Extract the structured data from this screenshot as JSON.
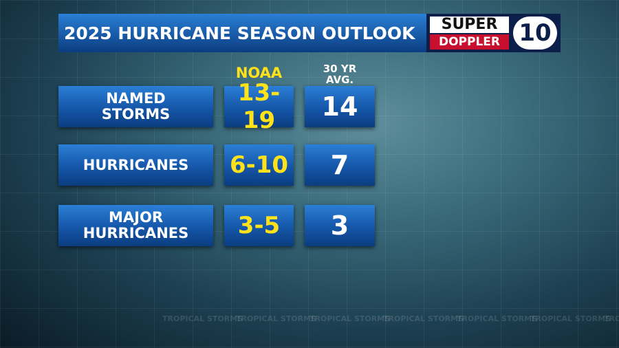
{
  "header": {
    "title": "2025 HURRICANE SEASON OUTLOOK",
    "logo": {
      "line1": "SUPER",
      "line2": "DOPPLER",
      "number": "10"
    }
  },
  "table": {
    "columns": [
      "NOAA",
      "30 YR AVG."
    ],
    "rows": [
      [
        "NAMED STORMS",
        "13-19",
        "14"
      ],
      [
        "HURRICANES",
        "6-10",
        "7"
      ],
      [
        "MAJOR HURRICANES",
        "3-5",
        "3"
      ]
    ]
  },
  "watermark": "TROPICAL STORMS"
}
